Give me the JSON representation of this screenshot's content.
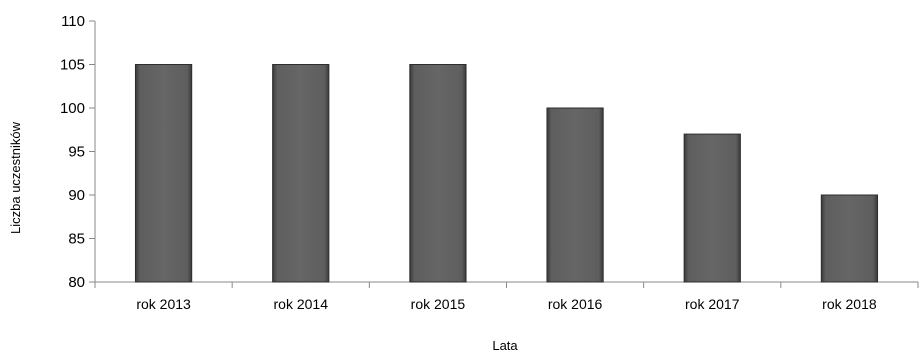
{
  "chart_data": {
    "type": "bar",
    "categories": [
      "rok 2013",
      "rok 2014",
      "rok 2015",
      "rok 2016",
      "rok 2017",
      "rok 2018"
    ],
    "values": [
      105,
      105,
      105,
      100,
      97,
      90
    ],
    "title": "",
    "xlabel": "Lata",
    "ylabel": "Liczba uczestników",
    "ylim": [
      80,
      110
    ],
    "yticks": [
      "80",
      "85",
      "90",
      "95",
      "100",
      "105",
      "110"
    ],
    "grid": false,
    "legend": "none",
    "bar_color": "#595959"
  }
}
